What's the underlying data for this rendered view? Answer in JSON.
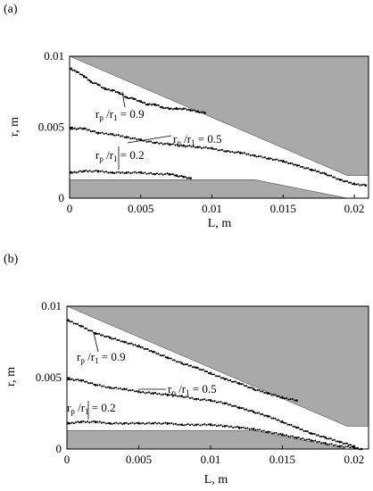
{
  "figure": {
    "panels": [
      {
        "panel_label": "(a)",
        "annotations": [
          {
            "text": "rp /r1 = 0.9",
            "series": "0.9"
          },
          {
            "text": "rp /r1 = 0.5",
            "series": "0.5"
          },
          {
            "text": "rp /r1 = 0.2",
            "series": "0.2"
          }
        ]
      },
      {
        "panel_label": "(b)",
        "annotations": [
          {
            "text": "rp /r1 = 0.9",
            "series": "0.9"
          },
          {
            "text": "rp /r1 = 0.5",
            "series": "0.5"
          },
          {
            "text": "rp /r1 = 0.2",
            "series": "0.2"
          }
        ]
      }
    ]
  },
  "colors": {
    "shade": "#a9a9a9",
    "line": "#000000",
    "background": "#ffffff"
  },
  "chart_data": [
    {
      "type": "scatter",
      "panel": "(a)",
      "xlabel": "L, m",
      "ylabel": "r, m",
      "xlim": [
        0,
        0.021
      ],
      "ylim": [
        0,
        0.01
      ],
      "xticks": [
        0,
        0.005,
        0.01,
        0.015,
        0.02
      ],
      "xtick_labels": [
        "0",
        "0.005",
        "0.01",
        "0.015",
        "0.02"
      ],
      "yticks": [
        0,
        0.005,
        0.01
      ],
      "ytick_labels": [
        "0",
        "0.005",
        "0.01"
      ],
      "grid": false,
      "shaded_regions": [
        {
          "name": "upper wall",
          "points": [
            [
              0,
              0.01
            ],
            [
              0.021,
              0.01
            ],
            [
              0.021,
              0.0016
            ],
            [
              0.0195,
              0.0016
            ]
          ]
        },
        {
          "name": "lower wall",
          "points": [
            [
              0,
              0
            ],
            [
              0,
              0.0013
            ],
            [
              0.013,
              0.0013
            ],
            [
              0.0195,
              0
            ],
            [
              0,
              0
            ]
          ]
        }
      ],
      "series": [
        {
          "name": "rp /r1 = 0.9",
          "x": [
            0.0001,
            0.0005,
            0.001,
            0.0015,
            0.002,
            0.0025,
            0.003,
            0.0035,
            0.004,
            0.0045,
            0.005,
            0.0055,
            0.006,
            0.0065,
            0.007,
            0.0075,
            0.008,
            0.0085,
            0.009,
            0.0095
          ],
          "y": [
            0.0091,
            0.0089,
            0.0086,
            0.0082,
            0.008,
            0.0077,
            0.0076,
            0.0074,
            0.0071,
            0.007,
            0.0068,
            0.0066,
            0.0066,
            0.0064,
            0.0063,
            0.0063,
            0.0063,
            0.0062,
            0.0061,
            0.006
          ]
        },
        {
          "name": "rp /r1 = 0.5",
          "x": [
            0.0001,
            0.001,
            0.002,
            0.003,
            0.004,
            0.005,
            0.006,
            0.007,
            0.008,
            0.009,
            0.01,
            0.011,
            0.012,
            0.013,
            0.014,
            0.015,
            0.016,
            0.017,
            0.018,
            0.019,
            0.02,
            0.0208
          ],
          "y": [
            0.0049,
            0.0049,
            0.0046,
            0.0045,
            0.0043,
            0.0041,
            0.0039,
            0.0038,
            0.0037,
            0.0036,
            0.0035,
            0.0033,
            0.0032,
            0.003,
            0.0028,
            0.0026,
            0.0023,
            0.002,
            0.0017,
            0.0013,
            0.001,
            0.0009
          ]
        },
        {
          "name": "rp /r1 = 0.2",
          "x": [
            0.0001,
            0.001,
            0.002,
            0.003,
            0.004,
            0.005,
            0.006,
            0.007,
            0.0075,
            0.008,
            0.0085
          ],
          "y": [
            0.0018,
            0.0019,
            0.0019,
            0.0018,
            0.0018,
            0.0018,
            0.0017,
            0.0017,
            0.0016,
            0.0015,
            0.0014
          ]
        }
      ]
    },
    {
      "type": "scatter",
      "panel": "(b)",
      "xlabel": "L, m",
      "ylabel": "r, m",
      "xlim": [
        0,
        0.021
      ],
      "ylim": [
        0,
        0.01
      ],
      "xticks": [
        0,
        0.005,
        0.01,
        0.015,
        0.02
      ],
      "xtick_labels": [
        "0",
        "0.005",
        "0.01",
        "0.015",
        "0.02"
      ],
      "yticks": [
        0,
        0.005,
        0.01
      ],
      "ytick_labels": [
        "0",
        "0.005",
        "0.01"
      ],
      "grid": false,
      "shaded_regions": [
        {
          "name": "upper wall",
          "points": [
            [
              0,
              0.01
            ],
            [
              0.021,
              0.01
            ],
            [
              0.021,
              0.0016
            ],
            [
              0.0195,
              0.0016
            ]
          ]
        },
        {
          "name": "lower wall",
          "points": [
            [
              0,
              0
            ],
            [
              0,
              0.0013
            ],
            [
              0.013,
              0.0013
            ],
            [
              0.0195,
              0
            ],
            [
              0,
              0
            ]
          ]
        }
      ],
      "series": [
        {
          "name": "rp /r1 = 0.9",
          "x": [
            0.0001,
            0.001,
            0.002,
            0.003,
            0.004,
            0.005,
            0.006,
            0.007,
            0.008,
            0.009,
            0.01,
            0.011,
            0.012,
            0.013,
            0.014,
            0.015,
            0.016
          ],
          "y": [
            0.009,
            0.0086,
            0.0081,
            0.0078,
            0.0075,
            0.0072,
            0.0068,
            0.0064,
            0.006,
            0.0057,
            0.0053,
            0.0049,
            0.0046,
            0.0042,
            0.0039,
            0.0036,
            0.0034
          ]
        },
        {
          "name": "rp /r1 = 0.5",
          "x": [
            0.0001,
            0.001,
            0.002,
            0.003,
            0.004,
            0.005,
            0.006,
            0.007,
            0.008,
            0.009,
            0.01,
            0.011,
            0.012,
            0.013,
            0.014,
            0.015,
            0.016,
            0.017,
            0.018,
            0.019,
            0.02
          ],
          "y": [
            0.0049,
            0.0048,
            0.0045,
            0.0043,
            0.0042,
            0.004,
            0.0039,
            0.0038,
            0.0037,
            0.0035,
            0.0034,
            0.0032,
            0.0029,
            0.0026,
            0.0023,
            0.0019,
            0.0015,
            0.0011,
            0.0008,
            0.0005,
            0.0002
          ]
        },
        {
          "name": "rp /r1 = 0.2",
          "x": [
            0.0001,
            0.001,
            0.002,
            0.003,
            0.004,
            0.005,
            0.006,
            0.007,
            0.008,
            0.009,
            0.01,
            0.011,
            0.012,
            0.013,
            0.014,
            0.015,
            0.016,
            0.017,
            0.018,
            0.019,
            0.02,
            0.0205
          ],
          "y": [
            0.0018,
            0.0019,
            0.0019,
            0.0018,
            0.0018,
            0.0018,
            0.0018,
            0.0018,
            0.0017,
            0.0017,
            0.0017,
            0.0016,
            0.0015,
            0.0014,
            0.0012,
            0.001,
            0.0008,
            0.0006,
            0.0004,
            0.0002,
            0.0001,
            0.0
          ]
        }
      ]
    }
  ]
}
